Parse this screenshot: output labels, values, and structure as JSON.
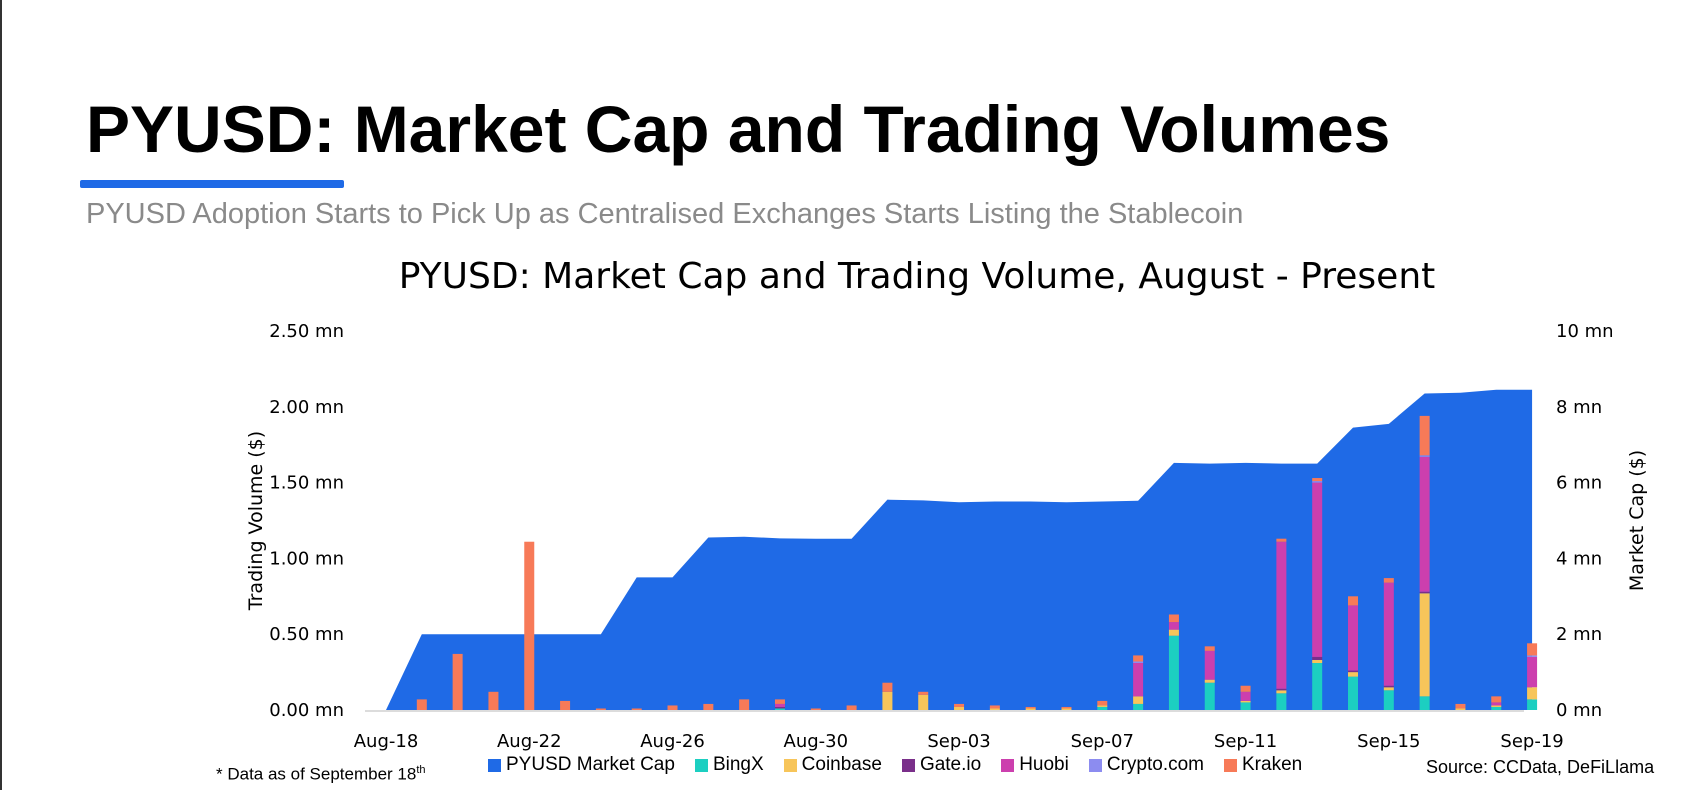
{
  "page": {
    "title": "PYUSD: Market Cap and Trading Volumes",
    "subtitle": "PYUSD Adoption Starts to Pick Up as Centralised Exchanges Starts Listing the Stablecoin",
    "footnote_text": "* Data as of September 18",
    "footnote_sup": "th",
    "source": "Source: CCData, DeFiLlama"
  },
  "colors": {
    "accent": "#1f6ae6",
    "market_cap": "#1f6ae6",
    "BingX": "#1ccfc1",
    "Coinbase": "#f7c55a",
    "Gate.io": "#7a2f8a",
    "Huobi": "#cc3fae",
    "Crypto.com": "#8c8cf0",
    "Kraken": "#f77a58"
  },
  "chart_data": {
    "type": "bar",
    "title": "PYUSD: Market Cap and Trading Volume, August - Present",
    "ylabel": "Trading Volume ($)",
    "y2label": "Market Cap ($)",
    "ylim": [
      0,
      2.5
    ],
    "y2lim": [
      0,
      10
    ],
    "y_ticks": [
      "0.00 mn",
      "0.50 mn",
      "1.00 mn",
      "1.50 mn",
      "2.00 mn",
      "2.50 mn"
    ],
    "y2_ticks": [
      "0 mn",
      "2 mn",
      "4 mn",
      "6 mn",
      "8 mn",
      "10 mn"
    ],
    "x_ticks": [
      "Aug-18",
      "Aug-22",
      "Aug-26",
      "Aug-30",
      "Sep-03",
      "Sep-07",
      "Sep-11",
      "Sep-15",
      "Sep-19"
    ],
    "categories": [
      "Aug-18",
      "Aug-19",
      "Aug-20",
      "Aug-21",
      "Aug-22",
      "Aug-23",
      "Aug-24",
      "Aug-25",
      "Aug-26",
      "Aug-27",
      "Aug-28",
      "Aug-29",
      "Aug-30",
      "Aug-31",
      "Sep-01",
      "Sep-02",
      "Sep-03",
      "Sep-04",
      "Sep-05",
      "Sep-06",
      "Sep-07",
      "Sep-08",
      "Sep-09",
      "Sep-10",
      "Sep-11",
      "Sep-12",
      "Sep-13",
      "Sep-14",
      "Sep-15",
      "Sep-16",
      "Sep-17",
      "Sep-18",
      "Sep-19"
    ],
    "area_series": {
      "name": "PYUSD Market Cap",
      "values": [
        0,
        2.0,
        2.0,
        2.0,
        2.0,
        2.0,
        2.0,
        3.5,
        3.5,
        4.55,
        4.57,
        4.53,
        4.52,
        4.52,
        5.55,
        5.53,
        5.48,
        5.5,
        5.5,
        5.48,
        5.5,
        5.52,
        6.52,
        6.5,
        6.52,
        6.5,
        6.5,
        7.45,
        7.55,
        8.35,
        8.37,
        8.45,
        8.45
      ]
    },
    "series": [
      {
        "name": "BingX",
        "values": [
          0,
          0,
          0,
          0,
          0,
          0,
          0,
          0,
          0,
          0,
          0,
          0.01,
          0,
          0,
          0,
          0,
          0,
          0,
          0,
          0,
          0.02,
          0.04,
          0.49,
          0.18,
          0.05,
          0.11,
          0.31,
          0.22,
          0.13,
          0.09,
          0,
          0.02,
          0.07
        ]
      },
      {
        "name": "Coinbase",
        "values": [
          0,
          0,
          0,
          0,
          0,
          0,
          0,
          0,
          0,
          0,
          0,
          0,
          0,
          0,
          0.12,
          0.1,
          0.02,
          0.01,
          0.01,
          0.01,
          0.01,
          0.05,
          0.04,
          0.02,
          0.01,
          0.02,
          0.02,
          0.03,
          0.02,
          0.68,
          0.01,
          0.01,
          0.08
        ]
      },
      {
        "name": "Gate.io",
        "values": [
          0,
          0,
          0,
          0,
          0,
          0,
          0,
          0,
          0,
          0,
          0,
          0.01,
          0,
          0,
          0,
          0,
          0,
          0,
          0,
          0,
          0,
          0,
          0,
          0,
          0,
          0.01,
          0.02,
          0.01,
          0.01,
          0.01,
          0,
          0,
          0
        ]
      },
      {
        "name": "Huobi",
        "values": [
          0,
          0,
          0,
          0,
          0,
          0,
          0,
          0,
          0,
          0,
          0,
          0.02,
          0,
          0,
          0,
          0,
          0,
          0,
          0,
          0,
          0,
          0.22,
          0.05,
          0.19,
          0.06,
          0.97,
          1.15,
          0.43,
          0.68,
          0.89,
          0,
          0.02,
          0.2
        ]
      },
      {
        "name": "Crypto.com",
        "values": [
          0,
          0,
          0,
          0,
          0,
          0,
          0,
          0,
          0,
          0,
          0,
          0,
          0,
          0,
          0,
          0,
          0,
          0,
          0,
          0,
          0,
          0.01,
          0,
          0,
          0,
          0,
          0.01,
          0,
          0,
          0.01,
          0,
          0,
          0.01
        ]
      },
      {
        "name": "Kraken",
        "values": [
          0,
          0.07,
          0.37,
          0.12,
          1.11,
          0.06,
          0.01,
          0.01,
          0.03,
          0.04,
          0.07,
          0.03,
          0.01,
          0.03,
          0.06,
          0.02,
          0.02,
          0.02,
          0.01,
          0.01,
          0.03,
          0.04,
          0.05,
          0.03,
          0.04,
          0.02,
          0.02,
          0.06,
          0.03,
          0.26,
          0.03,
          0.04,
          0.08
        ]
      }
    ]
  }
}
